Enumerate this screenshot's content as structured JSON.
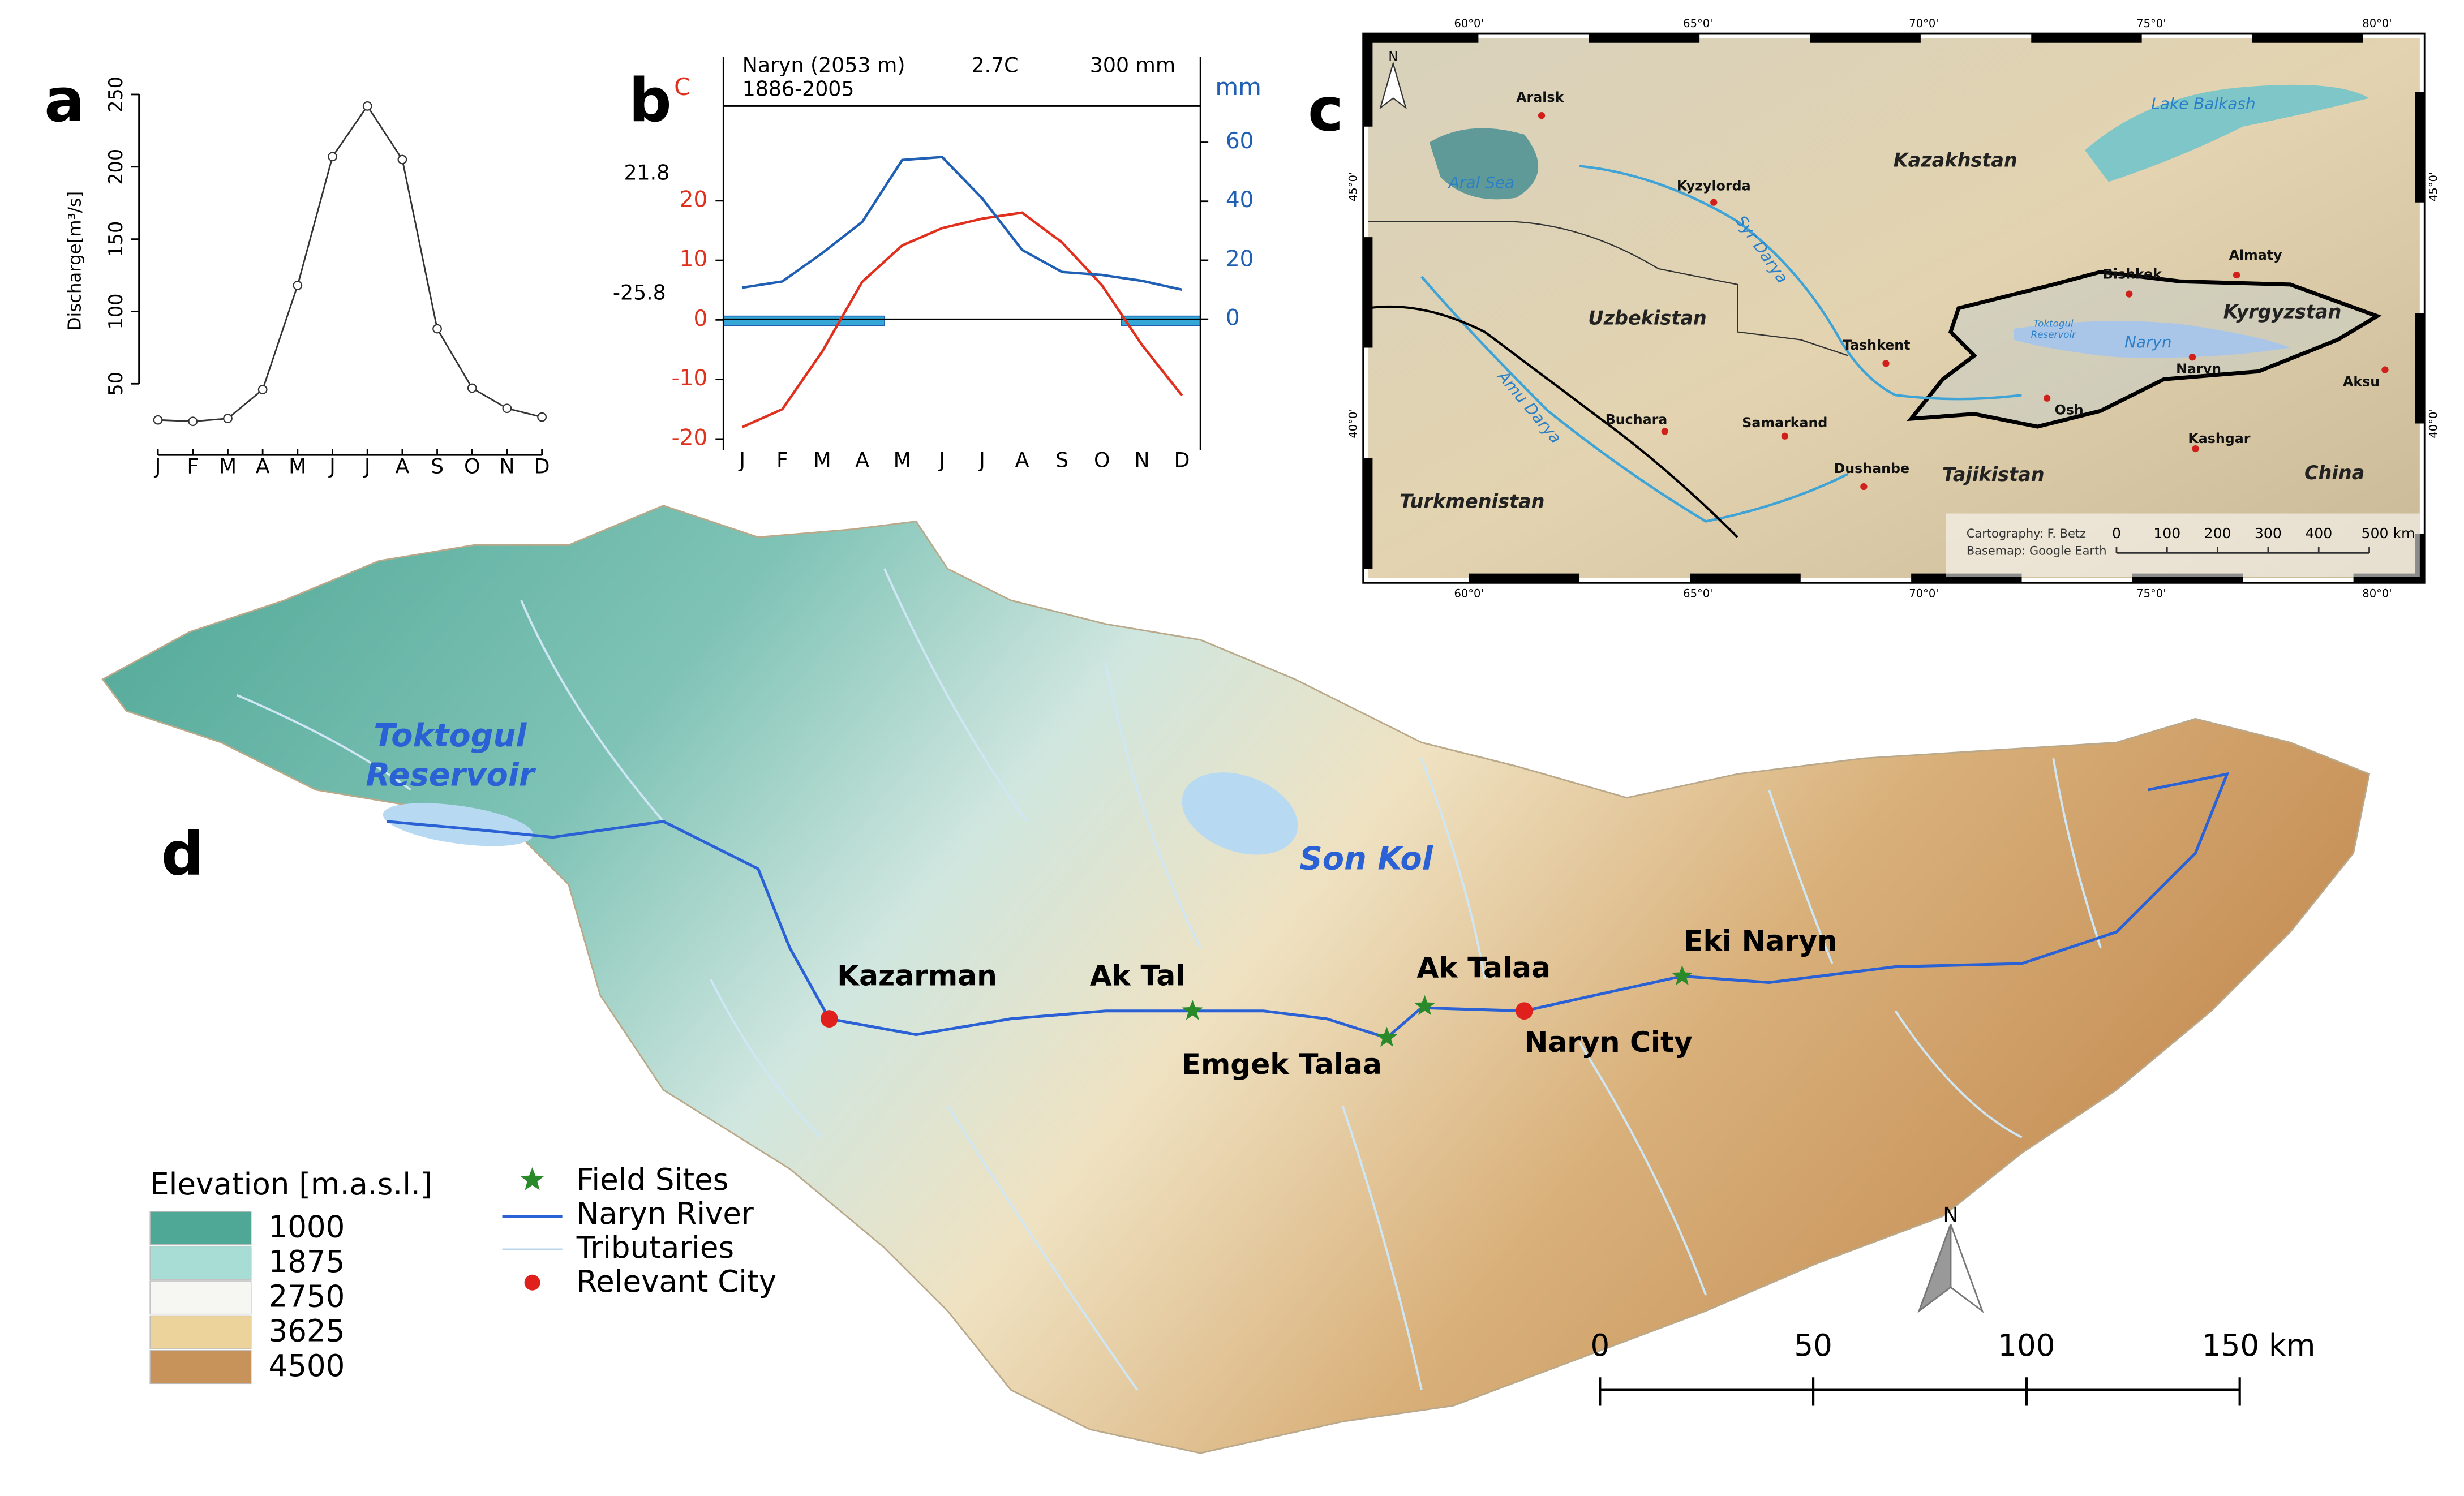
{
  "chart_data": [
    {
      "type": "line",
      "panel": "a",
      "ylabel": "Discharge[m³/s]",
      "categories": [
        "J",
        "F",
        "M",
        "A",
        "M",
        "J",
        "J",
        "A",
        "S",
        "O",
        "N",
        "D"
      ],
      "values": [
        25,
        24,
        26,
        46,
        118,
        207,
        242,
        205,
        88,
        47,
        33,
        27
      ],
      "color": "#333333",
      "ylim": [
        4,
        266
      ],
      "yticks": [
        50,
        100,
        150,
        200,
        250
      ]
    },
    {
      "type": "line",
      "panel": "b",
      "title": "Naryn (2053 m)",
      "subtitle": "1886-2005",
      "annotations": [
        "2.7C",
        "300 mm",
        "21.8",
        "-25.8"
      ],
      "ylabel": "C",
      "y2label": "mm",
      "categories": [
        "J",
        "F",
        "M",
        "A",
        "M",
        "J",
        "J",
        "A",
        "S",
        "O",
        "N",
        "D"
      ],
      "series": [
        {
          "color": "#e0301e",
          "values": [
            -18,
            -15,
            -5.3,
            6.4,
            12.5,
            15.4,
            17,
            18,
            13,
            5.8,
            -4.2,
            -12.7
          ]
        },
        {
          "color": "#1f5fb4",
          "axis": "y2",
          "values": [
            10.7,
            12.8,
            22.4,
            33,
            54,
            55,
            41,
            23.5,
            16,
            15,
            13,
            10
          ]
        }
      ],
      "ylim": [
        -21.9,
        35.9
      ],
      "yticks": [
        -20,
        -10,
        0,
        10,
        20
      ],
      "y2lim": [
        -44.5,
        72.3
      ],
      "y2ticks": [
        0,
        20,
        40,
        60
      ]
    }
  ],
  "map_c": {
    "panel": "c",
    "north": "N",
    "labels": [
      "Aralsk",
      "Aral Sea",
      "Kyzylorda",
      "Kazakhstan",
      "Lake Balkash",
      "Syr Darya",
      "Uzbekistan",
      "Bishkek",
      "Almaty",
      "Kyrgyzstan",
      "Toktogul",
      "Reservoir",
      "Naryn",
      "Naryn",
      "Tashkent",
      "Amu Darya",
      "Buchara",
      "Samarkand",
      "Osh",
      "Aksu",
      "Kashgar",
      "Dushanbe",
      "Tajikistan",
      "China",
      "Turkmenistan"
    ],
    "credits": [
      "Cartography: F. Betz",
      "Basemap: Google Earth"
    ],
    "longitudes": [
      "60°0'",
      "65°0'",
      "70°0'",
      "75°0'",
      "80°0'"
    ],
    "latitudes": [
      "45°0'",
      "40°0'"
    ],
    "scale": [
      "0",
      "100",
      "200",
      "300",
      "400",
      "500 km"
    ]
  },
  "map_d": {
    "panel": "d",
    "north": "N",
    "water": [
      "Toktogul",
      "Reservoir",
      "Son Kol"
    ],
    "places": [
      "Kazarman",
      "Ak Tal",
      "Ak Talaa",
      "Emgek Talaa",
      "Naryn City",
      "Eki Naryn"
    ],
    "elevation_legend": {
      "title": "Elevation [m.a.s.l.]",
      "items": [
        {
          "label": "1000",
          "color": "#4fa796"
        },
        {
          "label": "1875",
          "color": "#a7ddd4"
        },
        {
          "label": "2750",
          "color": "#f6f6f2"
        },
        {
          "label": "3625",
          "color": "#ecd29b"
        },
        {
          "label": "4500",
          "color": "#c8935b"
        }
      ]
    },
    "legend": [
      "Field Sites",
      "Naryn River",
      "Tributaries",
      "Relevant City"
    ],
    "scale": [
      "0",
      "50",
      "100",
      "150 km"
    ]
  }
}
